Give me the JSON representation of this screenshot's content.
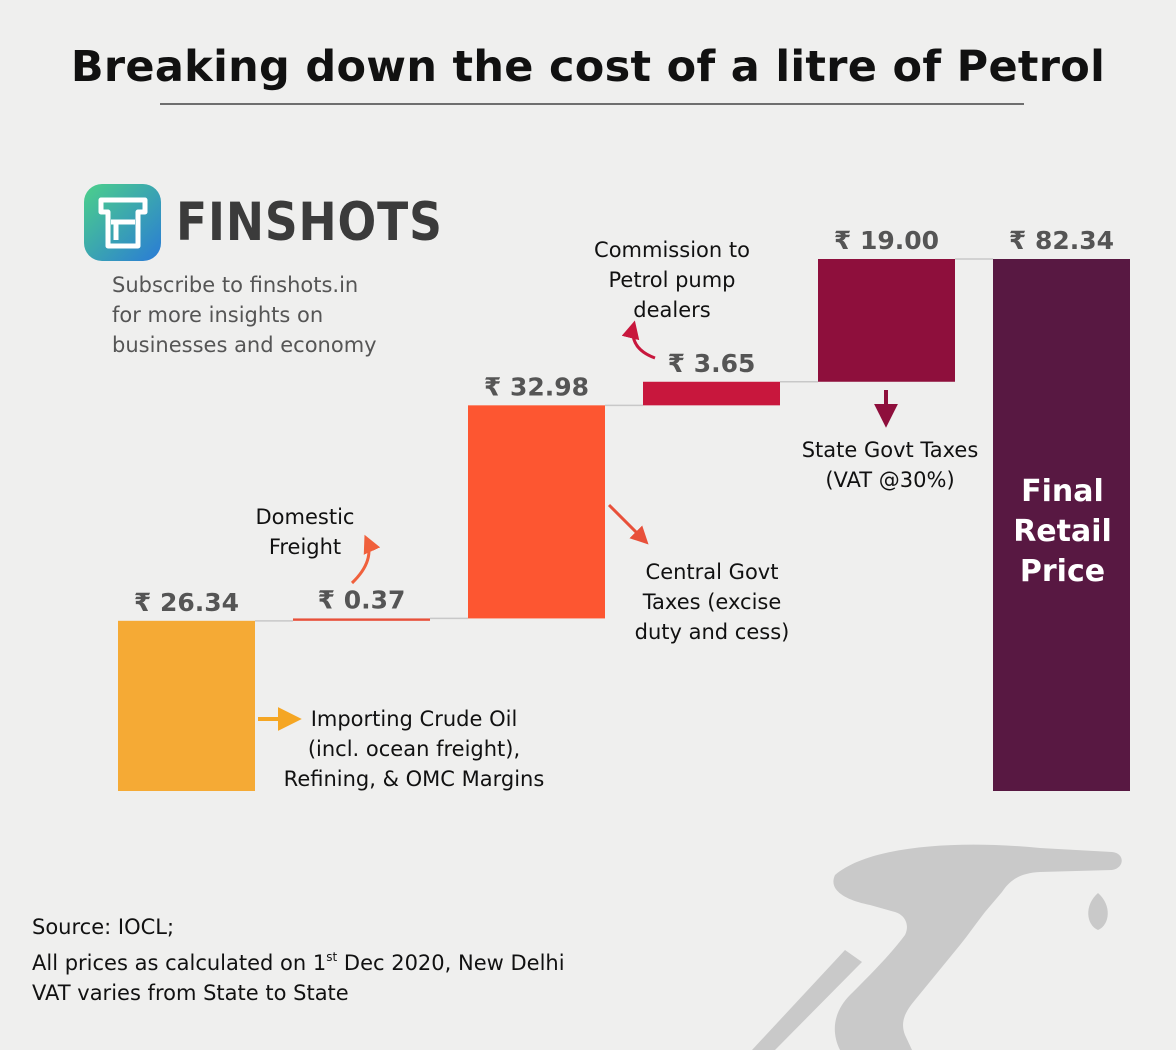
{
  "title": "Breaking down the cost of a litre of Petrol",
  "brand": {
    "name": "FINSHOTS",
    "tagline": [
      "Subscribe to finshots.in",
      "for more insights on",
      "businesses and economy"
    ]
  },
  "footer": {
    "source": "Source: IOCL;",
    "note_pre": "All prices as calculated on 1",
    "note_sup": "st",
    "note_post": " Dec 2020, New Delhi",
    "vat": "VAT varies from State to State"
  },
  "final_label": [
    "Final",
    "Retail",
    "Price"
  ],
  "colors": {
    "background": "#efefee",
    "crude": "#f5aa35",
    "freight": "#e8503a",
    "central": "#fd5631",
    "commission": "#c8173d",
    "state": "#8e0f3c",
    "final": "#581842",
    "connector": "#c8c8c8",
    "value_label": "#555555",
    "logo_start": "#4cd08a",
    "logo_end": "#2a7bd6",
    "pump_icon": "#c9c9c9"
  },
  "icons": [
    "finshots-logo-icon",
    "fuel-nozzle-icon"
  ],
  "chart_data": {
    "type": "waterfall",
    "currency": "₹",
    "ylim": [
      0,
      82.34
    ],
    "steps": [
      {
        "key": "crude",
        "value": 26.34,
        "label": "₹ 26.34",
        "annotation": [
          "Importing Crude Oil",
          "(incl. ocean freight),",
          "Refining, & OMC Margins"
        ]
      },
      {
        "key": "freight",
        "value": 0.37,
        "label": "₹ 0.37",
        "annotation": [
          "Domestic",
          "Freight"
        ]
      },
      {
        "key": "central",
        "value": 32.98,
        "label": "₹ 32.98",
        "annotation": [
          "Central Govt",
          "Taxes (excise",
          "duty and cess)"
        ]
      },
      {
        "key": "commission",
        "value": 3.65,
        "label": "₹ 3.65",
        "annotation": [
          "Commission to",
          "Petrol pump",
          "dealers"
        ]
      },
      {
        "key": "state",
        "value": 19.0,
        "label": "₹ 19.00",
        "annotation": [
          "State Govt Taxes",
          "(VAT @30%)"
        ]
      }
    ],
    "total": {
      "key": "final",
      "value": 82.34,
      "label": "₹ 82.34"
    }
  }
}
